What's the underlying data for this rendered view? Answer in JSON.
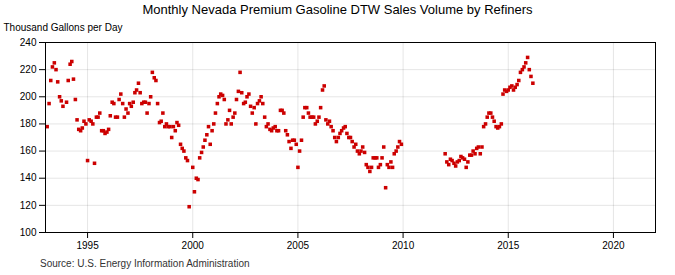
{
  "chart_data": {
    "type": "scatter",
    "title": "Monthly Nevada Premium Gasoline DTW Sales Volume by Refiners",
    "ylabel": "Thousand Gallons per Day",
    "source": "Source: U.S. Energy Information Administration",
    "xlim": [
      1993.0,
      2022.0
    ],
    "ylim": [
      100,
      240
    ],
    "xticks": [
      1995,
      2000,
      2005,
      2010,
      2015,
      2020
    ],
    "yticks": [
      100,
      120,
      140,
      160,
      180,
      200,
      220,
      240
    ],
    "color": "#cc0000",
    "marker": "square",
    "grid": true,
    "x": [
      1993.08,
      1993.17,
      1993.25,
      1993.33,
      1993.42,
      1993.5,
      1993.58,
      1993.67,
      1993.75,
      1993.83,
      1994.0,
      1994.08,
      1994.17,
      1994.25,
      1994.33,
      1994.42,
      1994.5,
      1994.58,
      1994.67,
      1994.75,
      1994.83,
      1994.92,
      1995.0,
      1995.08,
      1995.17,
      1995.25,
      1995.33,
      1995.42,
      1995.5,
      1995.58,
      1995.67,
      1995.75,
      1995.83,
      1995.92,
      1996.0,
      1996.08,
      1996.17,
      1996.25,
      1996.33,
      1996.42,
      1996.5,
      1996.58,
      1996.67,
      1996.75,
      1996.83,
      1996.92,
      1997.0,
      1997.08,
      1997.17,
      1997.25,
      1997.33,
      1997.42,
      1997.5,
      1997.58,
      1997.67,
      1997.75,
      1997.83,
      1997.92,
      1998.0,
      1998.08,
      1998.17,
      1998.25,
      1998.33,
      1998.42,
      1998.5,
      1998.58,
      1998.67,
      1998.75,
      1998.83,
      1998.92,
      1999.0,
      1999.08,
      1999.17,
      1999.25,
      1999.33,
      1999.42,
      1999.5,
      1999.58,
      1999.67,
      1999.75,
      1999.83,
      2000.0,
      2000.08,
      2000.17,
      2000.25,
      2000.33,
      2000.42,
      2000.5,
      2000.58,
      2000.67,
      2000.75,
      2000.83,
      2000.92,
      2001.0,
      2001.08,
      2001.17,
      2001.25,
      2001.33,
      2001.42,
      2001.5,
      2001.58,
      2001.67,
      2001.75,
      2001.83,
      2001.92,
      2002.0,
      2002.08,
      2002.17,
      2002.25,
      2002.33,
      2002.42,
      2002.5,
      2002.58,
      2002.67,
      2002.75,
      2002.83,
      2002.92,
      2003.0,
      2003.08,
      2003.17,
      2003.25,
      2003.33,
      2003.42,
      2003.5,
      2003.58,
      2003.67,
      2003.75,
      2003.83,
      2003.92,
      2004.0,
      2004.08,
      2004.17,
      2004.25,
      2004.33,
      2004.42,
      2004.5,
      2004.58,
      2004.67,
      2004.75,
      2004.83,
      2004.92,
      2005.0,
      2005.08,
      2005.17,
      2005.25,
      2005.33,
      2005.42,
      2005.5,
      2005.58,
      2005.67,
      2005.75,
      2005.83,
      2005.92,
      2006.0,
      2006.08,
      2006.17,
      2006.25,
      2006.33,
      2006.42,
      2006.5,
      2006.58,
      2006.67,
      2006.75,
      2006.83,
      2006.92,
      2007.0,
      2007.08,
      2007.17,
      2007.25,
      2007.33,
      2007.42,
      2007.5,
      2007.58,
      2007.67,
      2007.75,
      2007.83,
      2007.92,
      2008.0,
      2008.08,
      2008.17,
      2008.25,
      2008.33,
      2008.42,
      2008.5,
      2008.58,
      2008.67,
      2008.75,
      2008.83,
      2008.92,
      2009.0,
      2009.08,
      2009.17,
      2009.25,
      2009.33,
      2009.42,
      2009.5,
      2009.58,
      2009.67,
      2009.75,
      2009.83,
      2009.92,
      2012.0,
      2012.08,
      2012.17,
      2012.25,
      2012.33,
      2012.42,
      2012.5,
      2012.58,
      2012.67,
      2012.75,
      2012.83,
      2012.92,
      2013.0,
      2013.08,
      2013.17,
      2013.25,
      2013.33,
      2013.42,
      2013.5,
      2013.58,
      2013.67,
      2013.75,
      2013.83,
      2013.92,
      2014.0,
      2014.08,
      2014.17,
      2014.25,
      2014.33,
      2014.42,
      2014.5,
      2014.58,
      2014.67,
      2014.75,
      2014.83,
      2014.92,
      2015.0,
      2015.08,
      2015.17,
      2015.25,
      2015.33,
      2015.42,
      2015.5,
      2015.58,
      2015.67,
      2015.75,
      2015.83,
      2015.92,
      2016.0,
      2016.08,
      2016.17
    ],
    "values": [
      178,
      195,
      212,
      222,
      225,
      220,
      211,
      200,
      197,
      193,
      196,
      212,
      224,
      226,
      213,
      198,
      183,
      176,
      175,
      177,
      182,
      180,
      153,
      183,
      182,
      180,
      151,
      185,
      185,
      188,
      175,
      175,
      173,
      174,
      176,
      186,
      196,
      195,
      185,
      185,
      198,
      202,
      195,
      185,
      191,
      188,
      195,
      193,
      196,
      203,
      205,
      210,
      203,
      195,
      196,
      196,
      188,
      195,
      200,
      218,
      214,
      212,
      195,
      181,
      182,
      188,
      178,
      180,
      178,
      178,
      170,
      178,
      175,
      181,
      179,
      165,
      162,
      160,
      155,
      153,
      119,
      148,
      130,
      140,
      139,
      155,
      159,
      163,
      168,
      172,
      178,
      165,
      175,
      180,
      188,
      195,
      200,
      202,
      201,
      198,
      180,
      183,
      190,
      180,
      185,
      188,
      198,
      204,
      218,
      203,
      195,
      196,
      200,
      202,
      193,
      188,
      192,
      180,
      195,
      197,
      200,
      195,
      185,
      178,
      180,
      176,
      175,
      177,
      178,
      175,
      175,
      190,
      190,
      188,
      175,
      172,
      167,
      162,
      168,
      168,
      165,
      148,
      160,
      168,
      185,
      192,
      192,
      188,
      185,
      185,
      185,
      180,
      182,
      185,
      192,
      205,
      208,
      183,
      180,
      182,
      178,
      175,
      170,
      167,
      170,
      173,
      175,
      177,
      178,
      173,
      170,
      170,
      167,
      163,
      165,
      160,
      158,
      160,
      163,
      159,
      150,
      148,
      145,
      148,
      155,
      155,
      155,
      148,
      150,
      155,
      163,
      133,
      150,
      148,
      152,
      148,
      158,
      160,
      163,
      167,
      165,
      158,
      152,
      150,
      154,
      153,
      151,
      149,
      152,
      153,
      156,
      155,
      154,
      148,
      152,
      157,
      157,
      160,
      158,
      162,
      163,
      158,
      163,
      178,
      180,
      185,
      188,
      188,
      185,
      182,
      178,
      177,
      178,
      180,
      202,
      205,
      204,
      205,
      207,
      208,
      205,
      207,
      209,
      212,
      218,
      220,
      222,
      225,
      229,
      220,
      215,
      210
    ]
  }
}
